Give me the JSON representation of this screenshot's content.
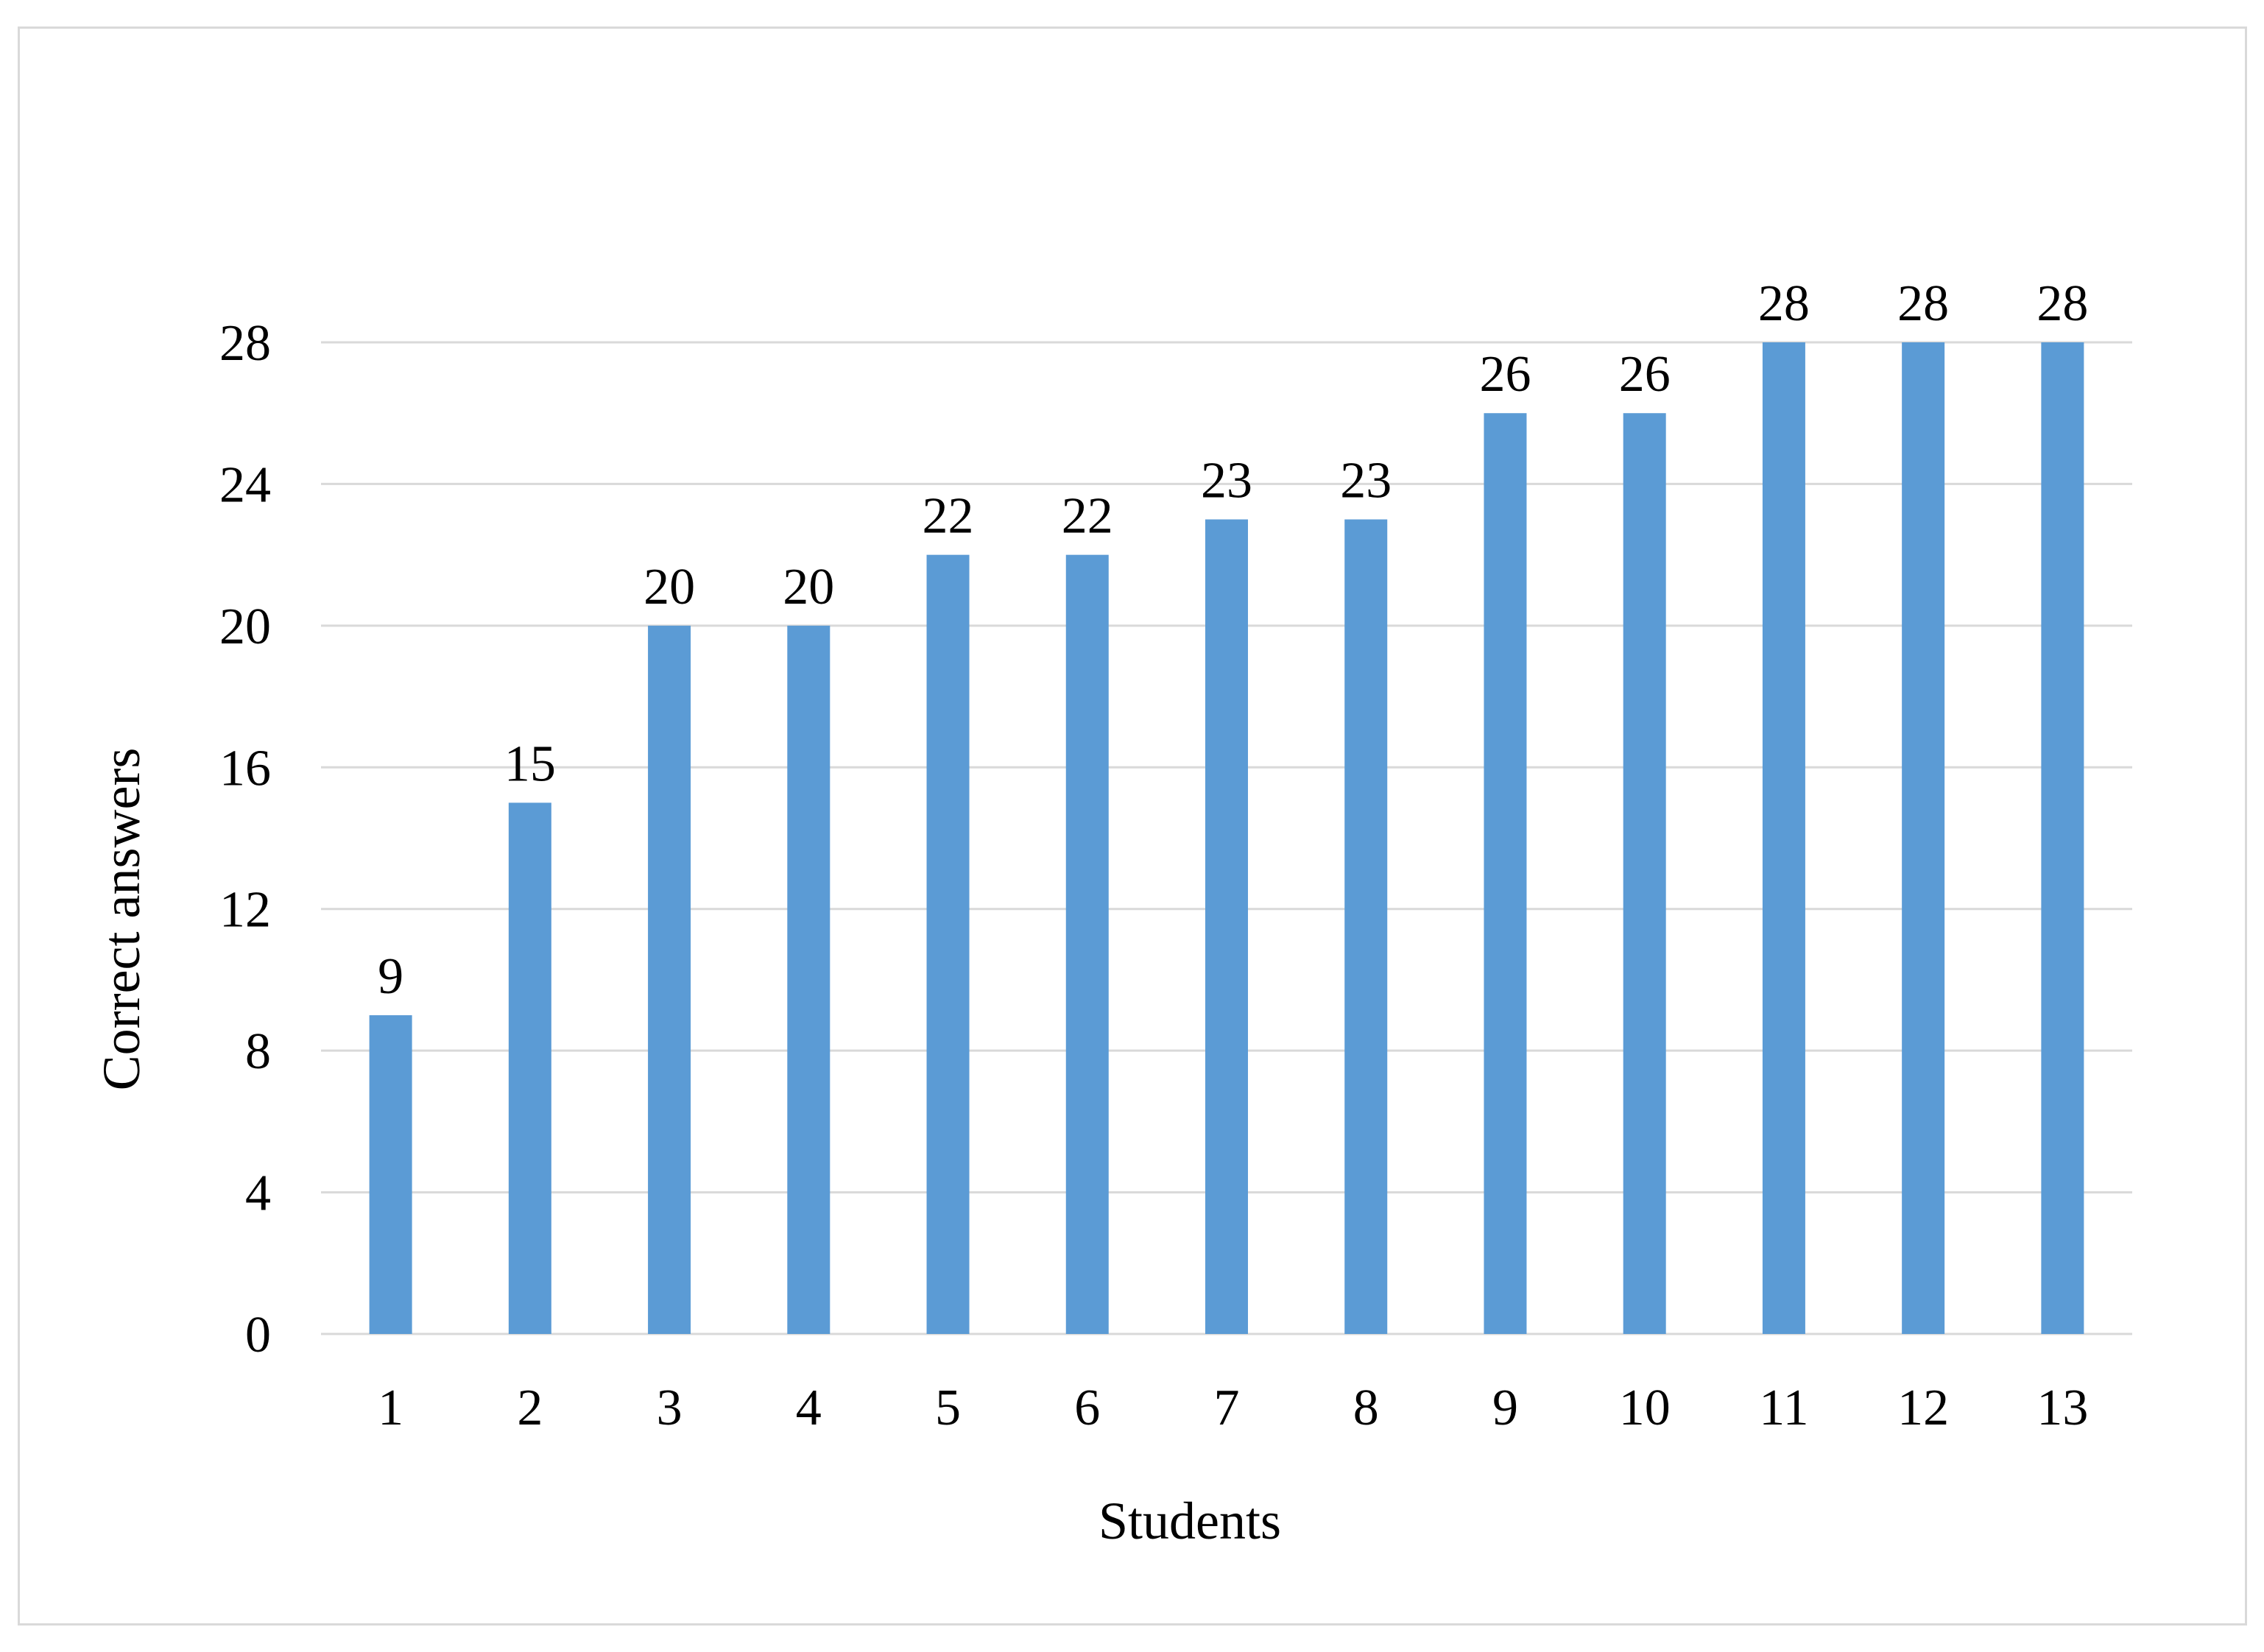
{
  "chart_data": {
    "type": "bar",
    "categories": [
      "1",
      "2",
      "3",
      "4",
      "5",
      "6",
      "7",
      "8",
      "9",
      "10",
      "11",
      "12",
      "13"
    ],
    "values": [
      9,
      15,
      20,
      20,
      22,
      22,
      23,
      23,
      26,
      26,
      28,
      28,
      28
    ],
    "title": "",
    "xlabel": "Students",
    "ylabel": "Correct answers",
    "ylim": [
      0,
      28
    ],
    "yticks": [
      0,
      4,
      8,
      12,
      16,
      20,
      24,
      28
    ],
    "grid": true,
    "legend": "none",
    "data_labels": true,
    "colors": {
      "bar": "#5b9bd5",
      "grid": "#d9d9d9",
      "frame": "#d9d9d9"
    }
  }
}
